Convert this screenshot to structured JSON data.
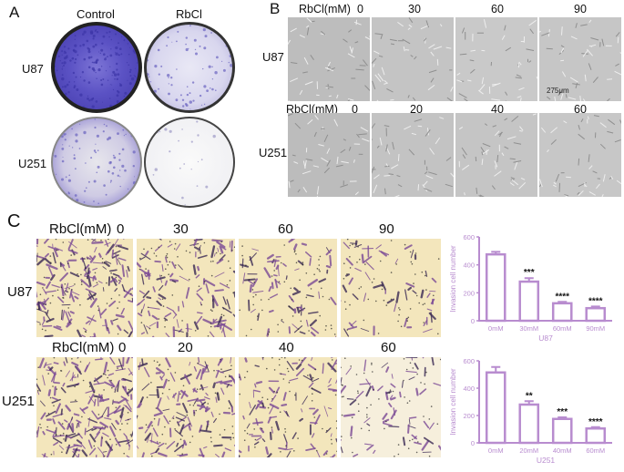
{
  "panel_a": {
    "letter": "A",
    "col_headers": [
      "Control",
      "RbCl"
    ],
    "row_labels": [
      "U87",
      "U251"
    ]
  },
  "panel_b": {
    "letter": "B",
    "rows": [
      {
        "cell_line": "U87",
        "header": "RbCl(mM)",
        "doses": [
          "0",
          "30",
          "60",
          "90"
        ]
      },
      {
        "cell_line": "U251",
        "header": "RbCl(mM)",
        "doses": [
          "0",
          "20",
          "40",
          "60"
        ]
      }
    ],
    "scale_label": "275μm"
  },
  "panel_c": {
    "letter": "C",
    "rows": [
      {
        "cell_line": "U87",
        "header": "RbCl(mM)",
        "doses": [
          "0",
          "30",
          "60",
          "90"
        ]
      },
      {
        "cell_line": "U251",
        "header": "RbCl(mM)",
        "doses": [
          "0",
          "20",
          "40",
          "60"
        ]
      }
    ]
  },
  "colors": {
    "crystal_violet": "#5a4fb8",
    "bar_chart": "#b88ccf",
    "transwell_bg": "#f3e6bc",
    "stain": "#7b4a96"
  },
  "chart_data": [
    {
      "type": "bar",
      "title": "U87",
      "xlabel": "U87",
      "ylabel": "Invasion cell number",
      "categories": [
        "0mM",
        "30mM",
        "60mM",
        "90mM"
      ],
      "values": [
        475,
        280,
        125,
        90
      ],
      "errors": [
        18,
        25,
        10,
        12
      ],
      "significance": [
        "",
        "***",
        "****",
        "****"
      ],
      "ylim": [
        0,
        600
      ],
      "yticks": [
        "0",
        "200",
        "400",
        "600"
      ]
    },
    {
      "type": "bar",
      "title": "U251",
      "xlabel": "U251",
      "ylabel": "Invasion cell number",
      "categories": [
        "0mM",
        "20mM",
        "40mM",
        "60mM"
      ],
      "values": [
        515,
        280,
        175,
        105
      ],
      "errors": [
        40,
        25,
        12,
        10
      ],
      "significance": [
        "",
        "**",
        "***",
        "****"
      ],
      "ylim": [
        0,
        600
      ],
      "yticks": [
        "0",
        "200",
        "400",
        "600"
      ]
    }
  ]
}
